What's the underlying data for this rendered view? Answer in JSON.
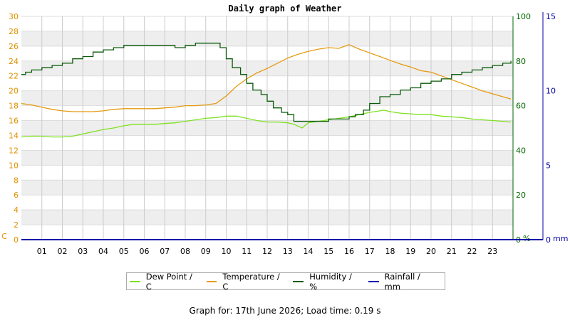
{
  "chart_data": {
    "type": "line",
    "title": "Daily graph of Weather",
    "x_ticks": [
      "01",
      "02",
      "03",
      "04",
      "05",
      "06",
      "07",
      "08",
      "09",
      "10",
      "11",
      "12",
      "13",
      "14",
      "15",
      "16",
      "17",
      "18",
      "19",
      "20",
      "21",
      "22",
      "23"
    ],
    "xlim": [
      0,
      24
    ],
    "axes": {
      "left": {
        "unit": "C",
        "range": [
          0,
          30
        ],
        "ticks": [
          0,
          2,
          4,
          6,
          8,
          10,
          12,
          14,
          16,
          18,
          20,
          22,
          24,
          26,
          28,
          30
        ],
        "color": "#e09000"
      },
      "humidity": {
        "unit": "%",
        "range": [
          0,
          100
        ],
        "ticks": [
          0,
          20,
          40,
          60,
          80,
          100
        ],
        "color": "#006600"
      },
      "rain": {
        "unit": "mm",
        "range": [
          0,
          15
        ],
        "ticks": [
          0,
          5,
          10,
          15
        ],
        "color": "#0000aa"
      }
    },
    "grid": true,
    "legend_placement": "bottom",
    "series": [
      {
        "name": "Dew Point / C",
        "axis": "left",
        "color": "#7fe020",
        "x": [
          0,
          0.5,
          1,
          1.5,
          2,
          2.5,
          3,
          3.5,
          4,
          4.5,
          5,
          5.5,
          6,
          6.5,
          7,
          7.5,
          8,
          8.5,
          9,
          9.5,
          10,
          10.5,
          11,
          11.5,
          12,
          12.5,
          13,
          13.3,
          13.7,
          14,
          14.5,
          15,
          15.5,
          16,
          16.5,
          17,
          17.5,
          17.7,
          18,
          18.5,
          19,
          19.5,
          20,
          20.5,
          21,
          21.5,
          22,
          22.5,
          23,
          23.5,
          23.9
        ],
        "values": [
          13.8,
          13.9,
          13.9,
          13.8,
          13.8,
          13.9,
          14.2,
          14.5,
          14.8,
          15.0,
          15.3,
          15.5,
          15.5,
          15.5,
          15.6,
          15.7,
          15.9,
          16.1,
          16.3,
          16.4,
          16.6,
          16.6,
          16.3,
          16.0,
          15.8,
          15.8,
          15.7,
          15.5,
          15.0,
          15.7,
          15.9,
          16.1,
          16.3,
          16.5,
          16.8,
          17.1,
          17.3,
          17.4,
          17.2,
          17.0,
          16.9,
          16.8,
          16.8,
          16.6,
          16.5,
          16.4,
          16.2,
          16.1,
          16.0,
          15.9,
          15.8
        ]
      },
      {
        "name": "Temperature / C",
        "axis": "left",
        "color": "#e59a10",
        "x": [
          0,
          0.5,
          1,
          1.5,
          2,
          2.5,
          3,
          3.5,
          4,
          4.5,
          5,
          5.5,
          6,
          6.5,
          7,
          7.5,
          8,
          8.5,
          9,
          9.5,
          10,
          10.5,
          11,
          11.5,
          12,
          12.5,
          13,
          13.5,
          14,
          14.5,
          15,
          15.5,
          16,
          16.5,
          17,
          17.5,
          18,
          18.5,
          19,
          19.5,
          20,
          20.5,
          21,
          21.5,
          22,
          22.5,
          23,
          23.5,
          23.9
        ],
        "values": [
          18.3,
          18.1,
          17.8,
          17.5,
          17.3,
          17.2,
          17.2,
          17.2,
          17.3,
          17.5,
          17.6,
          17.6,
          17.6,
          17.6,
          17.7,
          17.8,
          18.0,
          18.0,
          18.1,
          18.3,
          19.3,
          20.6,
          21.6,
          22.4,
          23.0,
          23.7,
          24.4,
          24.9,
          25.3,
          25.6,
          25.8,
          25.7,
          26.2,
          25.6,
          25.1,
          24.6,
          24.1,
          23.6,
          23.2,
          22.7,
          22.5,
          22.0,
          21.5,
          21.0,
          20.5,
          20.0,
          19.6,
          19.2,
          18.9
        ]
      },
      {
        "name": "Humidity / %",
        "axis": "humidity",
        "color": "#0a5a0a",
        "x": [
          0,
          0.2,
          0.5,
          1,
          1.5,
          2,
          2.5,
          3,
          3.5,
          4,
          4.5,
          5,
          5.5,
          6,
          6.5,
          7,
          7.5,
          8,
          8.5,
          9,
          9.3,
          9.7,
          10,
          10.3,
          10.7,
          11,
          11.3,
          11.7,
          12,
          12.3,
          12.7,
          13,
          13.3,
          13.7,
          14,
          14.5,
          15,
          15.5,
          16,
          16.3,
          16.7,
          17,
          17.5,
          18,
          18.5,
          19,
          19.5,
          20,
          20.5,
          21,
          21.5,
          22,
          22.5,
          23,
          23.5,
          23.9
        ],
        "values": [
          74,
          75,
          76,
          77,
          78,
          79,
          81,
          82,
          84,
          85,
          86,
          87,
          87,
          87,
          87,
          87,
          86,
          87,
          88,
          88,
          88,
          86,
          81,
          77,
          74,
          70,
          67,
          65,
          62,
          59,
          57,
          56,
          53,
          53,
          53,
          53,
          54,
          54,
          55,
          56,
          58,
          61,
          64,
          65,
          67,
          68,
          70,
          71,
          72,
          74,
          75,
          76,
          77,
          78,
          79,
          80
        ]
      },
      {
        "name": "Rainfall / mm",
        "axis": "rain",
        "color": "#0000aa",
        "x": [
          0,
          24
        ],
        "values": [
          0,
          0
        ]
      }
    ]
  },
  "footer": {
    "label": "Graph for:",
    "date": "17th June 2026",
    "load_label": "; Load time:",
    "load_time": "0.19 s"
  }
}
